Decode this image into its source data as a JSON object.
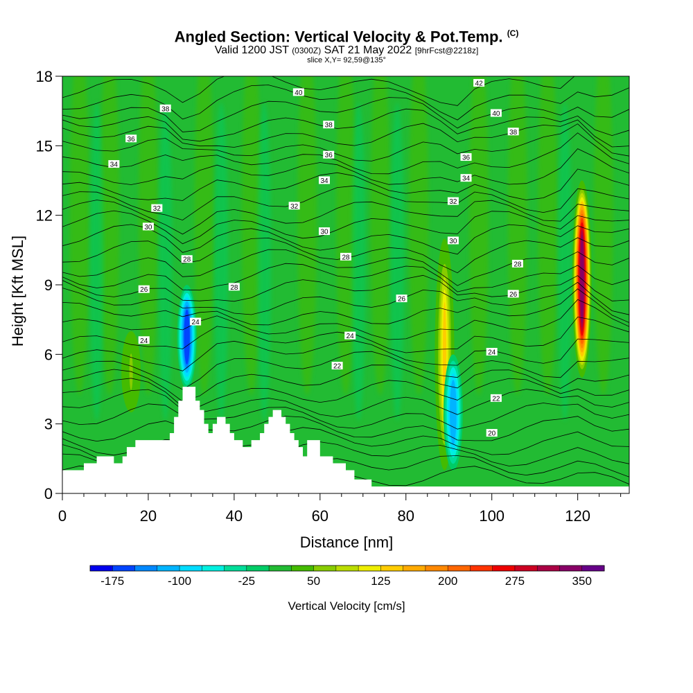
{
  "title": {
    "main": "Angled Section: Vertical Velocity & Pot.Temp.",
    "copyright": "(C)",
    "valid_prefix": "Valid 1200 JST",
    "valid_zulu": "(0300Z)",
    "valid_date": "SAT 21 May 2022",
    "forecast": "[9hrFcst@2218z]",
    "slice": "slice X,Y= 92,59@135°"
  },
  "chart_data": {
    "type": "heatmap",
    "xlabel": "Distance [nm]",
    "ylabel": "Height [Kft MSL]",
    "xlim": [
      0,
      132
    ],
    "ylim": [
      0,
      18
    ],
    "x_ticks": [
      0,
      20,
      40,
      60,
      80,
      100,
      120
    ],
    "y_ticks": [
      0,
      3,
      6,
      9,
      12,
      15,
      18
    ],
    "colorbar": {
      "label": "Vertical Velocity [cm/s]",
      "min": -200,
      "step": 25,
      "tick_labels": [
        "-175",
        "-100",
        "-25",
        "50",
        "125",
        "200",
        "275",
        "350"
      ],
      "tick_values": [
        -175,
        -100,
        -25,
        50,
        125,
        200,
        275,
        350
      ],
      "colors": [
        "#0000ee",
        "#0044ff",
        "#0088ff",
        "#00b4ff",
        "#00dcff",
        "#00f0e0",
        "#00dd99",
        "#00cc66",
        "#22bb33",
        "#44bb00",
        "#88cc00",
        "#bbdd00",
        "#eeee00",
        "#ffcc00",
        "#ffaa00",
        "#ff8800",
        "#ff6600",
        "#ff3300",
        "#ee0000",
        "#cc0022",
        "#aa0044",
        "#880066",
        "#660088"
      ]
    },
    "terrain_kft": [
      [
        0,
        1.0
      ],
      [
        5,
        1.0
      ],
      [
        5,
        1.3
      ],
      [
        8,
        1.3
      ],
      [
        8,
        1.6
      ],
      [
        12,
        1.6
      ],
      [
        12,
        1.3
      ],
      [
        14,
        1.3
      ],
      [
        14,
        1.6
      ],
      [
        15,
        1.6
      ],
      [
        15,
        2.0
      ],
      [
        17,
        2.0
      ],
      [
        17,
        2.3
      ],
      [
        20,
        2.3
      ],
      [
        20,
        2.3
      ],
      [
        25,
        2.3
      ],
      [
        25,
        2.6
      ],
      [
        26,
        2.6
      ],
      [
        26,
        3.3
      ],
      [
        27,
        3.3
      ],
      [
        27,
        4.0
      ],
      [
        28,
        4.0
      ],
      [
        28,
        4.6
      ],
      [
        31,
        4.6
      ],
      [
        31,
        4.0
      ],
      [
        32,
        4.0
      ],
      [
        32,
        3.6
      ],
      [
        33,
        3.6
      ],
      [
        33,
        3.0
      ],
      [
        34,
        3.0
      ],
      [
        34,
        2.6
      ],
      [
        35,
        2.6
      ],
      [
        35,
        3.0
      ],
      [
        36,
        3.0
      ],
      [
        36,
        3.3
      ],
      [
        38,
        3.3
      ],
      [
        38,
        3.0
      ],
      [
        39,
        3.0
      ],
      [
        39,
        2.6
      ],
      [
        40,
        2.6
      ],
      [
        40,
        2.3
      ],
      [
        42,
        2.3
      ],
      [
        42,
        2.0
      ],
      [
        44,
        2.0
      ],
      [
        44,
        2.3
      ],
      [
        46,
        2.3
      ],
      [
        46,
        2.6
      ],
      [
        47,
        2.6
      ],
      [
        47,
        3.0
      ],
      [
        48,
        3.0
      ],
      [
        48,
        3.3
      ],
      [
        49,
        3.3
      ],
      [
        49,
        3.6
      ],
      [
        51,
        3.6
      ],
      [
        51,
        3.3
      ],
      [
        52,
        3.3
      ],
      [
        52,
        3.0
      ],
      [
        53,
        3.0
      ],
      [
        53,
        2.6
      ],
      [
        54,
        2.6
      ],
      [
        54,
        2.3
      ],
      [
        55,
        2.3
      ],
      [
        55,
        2.0
      ],
      [
        56,
        2.0
      ],
      [
        56,
        1.6
      ],
      [
        57,
        1.6
      ],
      [
        57,
        2.3
      ],
      [
        60,
        2.3
      ],
      [
        60,
        1.6
      ],
      [
        63,
        1.6
      ],
      [
        63,
        1.3
      ],
      [
        66,
        1.3
      ],
      [
        66,
        1.0
      ],
      [
        68,
        1.0
      ],
      [
        68,
        0.6
      ],
      [
        72,
        0.6
      ],
      [
        72,
        0.3
      ],
      [
        132,
        0.3
      ]
    ],
    "updraft_cores": [
      {
        "x": 121,
        "y_from": 5,
        "y_to": 13.5,
        "peak_cm_s": 325
      },
      {
        "x": 89,
        "y_from": 1,
        "y_to": 11,
        "peak_cm_s": 130
      },
      {
        "x": 16,
        "y_from": 3.5,
        "y_to": 7,
        "peak_cm_s": 60
      }
    ],
    "downdraft_cores": [
      {
        "x": 29,
        "y_from": 4.5,
        "y_to": 9,
        "peak_cm_s": -175
      },
      {
        "x": 91,
        "y_from": 1,
        "y_to": 6,
        "peak_cm_s": -125
      }
    ],
    "isentropes_K": [
      20,
      22,
      24,
      26,
      28,
      30,
      32,
      34,
      36,
      38,
      40,
      42
    ],
    "contour_labels": [
      {
        "text": "40",
        "x": 55,
        "y": 17.3
      },
      {
        "text": "38",
        "x": 24,
        "y": 16.6
      },
      {
        "text": "38",
        "x": 62,
        "y": 15.9
      },
      {
        "text": "36",
        "x": 16,
        "y": 15.3
      },
      {
        "text": "36",
        "x": 62,
        "y": 14.6
      },
      {
        "text": "34",
        "x": 12,
        "y": 14.2
      },
      {
        "text": "34",
        "x": 61,
        "y": 13.5
      },
      {
        "text": "32",
        "x": 22,
        "y": 12.3
      },
      {
        "text": "32",
        "x": 54,
        "y": 12.4
      },
      {
        "text": "30",
        "x": 20,
        "y": 11.5
      },
      {
        "text": "30",
        "x": 61,
        "y": 11.3
      },
      {
        "text": "28",
        "x": 29,
        "y": 10.1
      },
      {
        "text": "28",
        "x": 66,
        "y": 10.2
      },
      {
        "text": "28",
        "x": 40,
        "y": 8.9
      },
      {
        "text": "26",
        "x": 19,
        "y": 8.8
      },
      {
        "text": "26",
        "x": 79,
        "y": 8.4
      },
      {
        "text": "24",
        "x": 31,
        "y": 7.4
      },
      {
        "text": "24",
        "x": 19,
        "y": 6.6
      },
      {
        "text": "24",
        "x": 67,
        "y": 6.8
      },
      {
        "text": "22",
        "x": 64,
        "y": 5.5
      },
      {
        "text": "42",
        "x": 97,
        "y": 17.7
      },
      {
        "text": "40",
        "x": 101,
        "y": 16.4
      },
      {
        "text": "38",
        "x": 105,
        "y": 15.6
      },
      {
        "text": "36",
        "x": 94,
        "y": 14.5
      },
      {
        "text": "34",
        "x": 94,
        "y": 13.6
      },
      {
        "text": "32",
        "x": 91,
        "y": 12.6
      },
      {
        "text": "30",
        "x": 91,
        "y": 10.9
      },
      {
        "text": "28",
        "x": 106,
        "y": 9.9
      },
      {
        "text": "26",
        "x": 105,
        "y": 8.6
      },
      {
        "text": "24",
        "x": 100,
        "y": 6.1
      },
      {
        "text": "22",
        "x": 101,
        "y": 4.1
      },
      {
        "text": "20",
        "x": 100,
        "y": 2.6
      }
    ]
  }
}
